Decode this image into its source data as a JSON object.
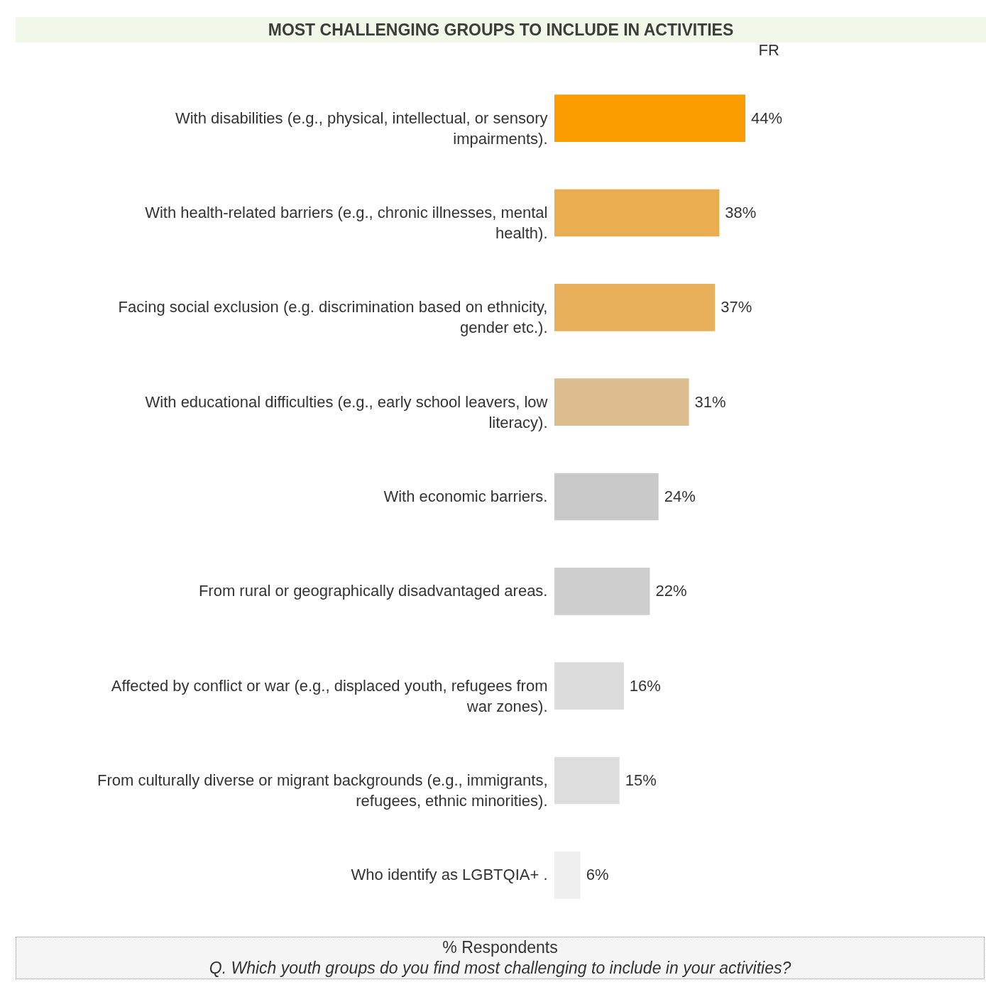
{
  "chart_data": {
    "type": "bar",
    "orientation": "horizontal",
    "title": "MOST CHALLENGING GROUPS TO INCLUDE IN ACTIVITIES",
    "xlabel": "FR",
    "categories": [
      "With disabilities (e.g., physical, intellectual, or sensory impairments).",
      "With health-related barriers (e.g., chronic illnesses, mental health).",
      "Facing social exclusion (e.g. discrimination based on ethnicity, gender etc.).",
      "With educational difficulties (e.g., early school leavers, low literacy).",
      "With economic barriers.",
      "From rural or geographically disadvantaged areas.",
      "Affected by conflict or war (e.g., displaced youth, refugees from war zones).",
      "From culturally diverse or migrant backgrounds (e.g., immigrants, refugees, ethnic minorities).",
      "Who identify as LGBTQIA+ ."
    ],
    "values": [
      44,
      38,
      37,
      31,
      24,
      22,
      16,
      15,
      6
    ],
    "colors": [
      "#fb9d00",
      "#eaad50",
      "#e8b05a",
      "#dbbd8e",
      "#c9c9c9",
      "#cfcfcf",
      "#dcdcdc",
      "#dddddd",
      "#efefef"
    ],
    "value_labels": [
      "44%",
      "38%",
      "37%",
      "31%",
      "24%",
      "22%",
      "16%",
      "15%",
      "6%"
    ],
    "tick_labels": "y",
    "annotations": [
      "% Respondents",
      "Q. Which youth groups do you find most challenging to include in your activities?"
    ]
  }
}
